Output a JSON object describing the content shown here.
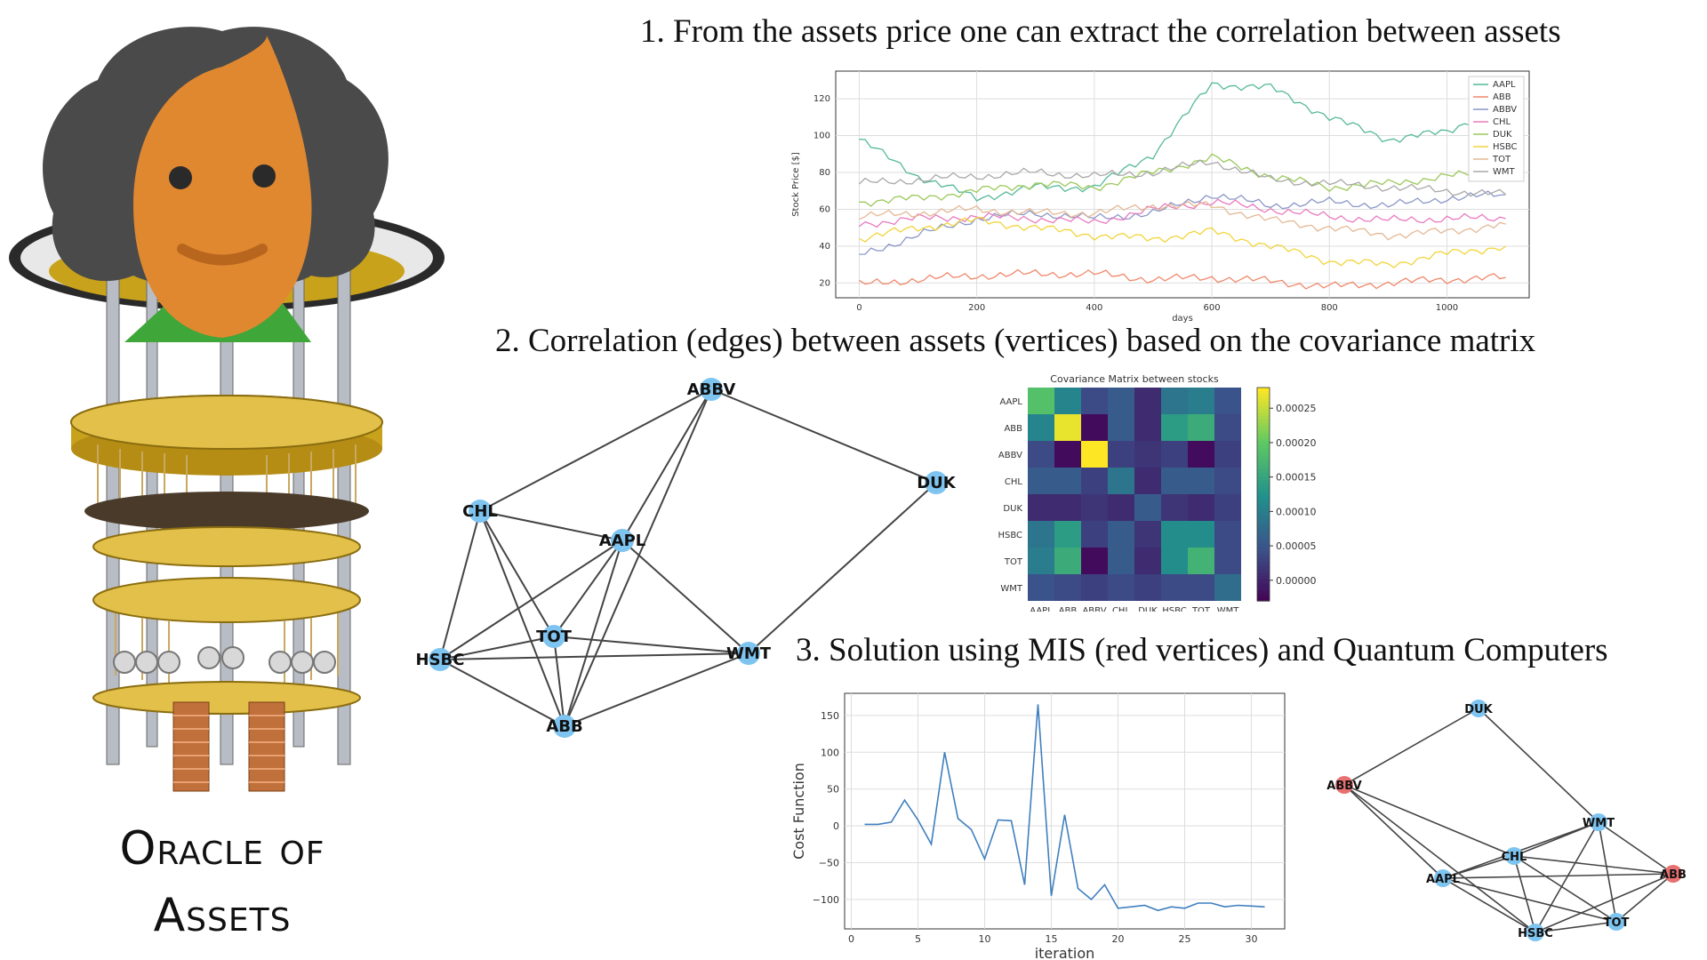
{
  "headings": {
    "step1": "1.  From the assets price one can extract the correlation between assets",
    "step2": "2. Correlation (edges) between assets (vertices) based on the covariance matrix",
    "step3": "3. Solution using MIS (red vertices) and Quantum Computers"
  },
  "oracle": {
    "line1": "Oracle of",
    "line2": "Assets"
  },
  "colors": {
    "node_blue": "#7ec4f0",
    "node_red": "#e87070",
    "edge": "#444444",
    "cost_line": "#3f7fbf"
  },
  "graph_nodes": [
    "AAPL",
    "ABB",
    "ABBV",
    "CHL",
    "DUK",
    "HSBC",
    "TOT",
    "WMT"
  ],
  "graph2_edges": [
    [
      "ABBV",
      "CHL"
    ],
    [
      "ABBV",
      "DUK"
    ],
    [
      "ABBV",
      "AAPL"
    ],
    [
      "ABBV",
      "ABB"
    ],
    [
      "DUK",
      "WMT"
    ],
    [
      "CHL",
      "AAPL"
    ],
    [
      "CHL",
      "HSBC"
    ],
    [
      "CHL",
      "TOT"
    ],
    [
      "CHL",
      "ABB"
    ],
    [
      "AAPL",
      "HSBC"
    ],
    [
      "AAPL",
      "TOT"
    ],
    [
      "AAPL",
      "WMT"
    ],
    [
      "AAPL",
      "ABB"
    ],
    [
      "HSBC",
      "TOT"
    ],
    [
      "HSBC",
      "WMT"
    ],
    [
      "HSBC",
      "ABB"
    ],
    [
      "TOT",
      "WMT"
    ],
    [
      "TOT",
      "ABB"
    ],
    [
      "WMT",
      "ABB"
    ]
  ],
  "graph3_red_nodes": [
    "ABBV",
    "ABB"
  ],
  "graph3_edges": [
    [
      "DUK",
      "ABBV"
    ],
    [
      "DUK",
      "WMT"
    ],
    [
      "ABBV",
      "AAPL"
    ],
    [
      "ABBV",
      "CHL"
    ],
    [
      "ABBV",
      "HSBC"
    ],
    [
      "WMT",
      "CHL"
    ],
    [
      "WMT",
      "AAPL"
    ],
    [
      "WMT",
      "HSBC"
    ],
    [
      "WMT",
      "TOT"
    ],
    [
      "WMT",
      "ABB"
    ],
    [
      "CHL",
      "AAPL"
    ],
    [
      "CHL",
      "ABB"
    ],
    [
      "CHL",
      "HSBC"
    ],
    [
      "CHL",
      "TOT"
    ],
    [
      "AAPL",
      "ABB"
    ],
    [
      "AAPL",
      "HSBC"
    ],
    [
      "AAPL",
      "TOT"
    ],
    [
      "ABB",
      "HSBC"
    ],
    [
      "ABB",
      "TOT"
    ],
    [
      "HSBC",
      "TOT"
    ]
  ],
  "chart_data": [
    {
      "type": "line",
      "title": "",
      "xlabel": "days",
      "ylabel": "Stock Price [$]",
      "xlim": [
        -40,
        1140
      ],
      "ylim": [
        12,
        135
      ],
      "xticks": [
        0,
        200,
        400,
        600,
        800,
        1000
      ],
      "yticks": [
        20,
        40,
        60,
        80,
        100,
        120
      ],
      "grid": true,
      "legend": "top-right",
      "x": [
        0,
        100,
        200,
        300,
        400,
        500,
        600,
        700,
        800,
        900,
        1000,
        1100
      ],
      "series": [
        {
          "name": "AAPL",
          "color": "#55b89a",
          "values": [
            98,
            78,
            66,
            72,
            72,
            90,
            128,
            126,
            110,
            98,
            102,
            118
          ]
        },
        {
          "name": "ABB",
          "color": "#f0876a",
          "values": [
            19,
            22,
            24,
            25,
            25,
            22,
            23,
            21,
            18,
            20,
            22,
            23
          ]
        },
        {
          "name": "ABBV",
          "color": "#8a97c8",
          "values": [
            35,
            46,
            55,
            58,
            55,
            58,
            68,
            62,
            64,
            62,
            66,
            68
          ]
        },
        {
          "name": "CHL",
          "color": "#e87ac0",
          "values": [
            52,
            55,
            56,
            55,
            53,
            60,
            64,
            60,
            56,
            54,
            55,
            55
          ]
        },
        {
          "name": "DUK",
          "color": "#9ac85a",
          "values": [
            64,
            66,
            70,
            74,
            72,
            80,
            88,
            78,
            72,
            74,
            78,
            80
          ]
        },
        {
          "name": "HSBC",
          "color": "#f2d43a",
          "values": [
            44,
            50,
            54,
            50,
            46,
            44,
            48,
            40,
            32,
            30,
            36,
            40
          ]
        },
        {
          "name": "TOT",
          "color": "#e4b894",
          "values": [
            56,
            58,
            60,
            58,
            58,
            62,
            62,
            54,
            50,
            46,
            48,
            52
          ]
        },
        {
          "name": "WMT",
          "color": "#a8a8a8",
          "values": [
            74,
            76,
            78,
            80,
            78,
            80,
            86,
            76,
            74,
            72,
            70,
            68
          ]
        }
      ]
    },
    {
      "type": "heatmap",
      "title": "Covariance Matrix between stocks",
      "rows": [
        "AAPL",
        "ABB",
        "ABBV",
        "CHL",
        "DUK",
        "HSBC",
        "TOT",
        "WMT"
      ],
      "cols": [
        "AAPL",
        "ABB",
        "ABBV",
        "CHL",
        "DUK",
        "HSBC",
        "TOT",
        "WMT"
      ],
      "values": [
        [
          0.00019,
          0.00011,
          4e-05,
          6e-05,
          1e-05,
          9e-05,
          0.0001,
          5e-05
        ],
        [
          0.00011,
          0.00027,
          -2e-05,
          6e-05,
          1e-05,
          0.00014,
          0.00016,
          4e-05
        ],
        [
          4e-05,
          -2e-05,
          0.00028,
          3e-05,
          2e-05,
          3e-05,
          -2e-05,
          3e-05
        ],
        [
          6e-05,
          6e-05,
          3e-05,
          9e-05,
          1e-05,
          6e-05,
          6e-05,
          4e-05
        ],
        [
          1e-05,
          1e-05,
          2e-05,
          1e-05,
          6e-05,
          2e-05,
          1e-05,
          3e-05
        ],
        [
          9e-05,
          0.00014,
          3e-05,
          6e-05,
          2e-05,
          0.00012,
          0.00012,
          4e-05
        ],
        [
          0.0001,
          0.00016,
          -2e-05,
          6e-05,
          1e-05,
          0.00012,
          0.00017,
          4e-05
        ],
        [
          5e-05,
          4e-05,
          3e-05,
          4e-05,
          3e-05,
          4e-05,
          4e-05,
          8e-05
        ]
      ],
      "colorbar_ticks": [
        "0.00025",
        "0.00020",
        "0.00015",
        "0.00010",
        "0.00005",
        "0.00000"
      ],
      "vmin": -3e-05,
      "vmax": 0.00028
    },
    {
      "type": "line",
      "title": "",
      "xlabel": "iteration",
      "ylabel": "Cost Function",
      "xlim": [
        -0.5,
        32.5
      ],
      "ylim": [
        -140,
        180
      ],
      "xticks": [
        0,
        5,
        10,
        15,
        20,
        25,
        30
      ],
      "yticks": [
        -100,
        -50,
        0,
        50,
        100,
        150
      ],
      "grid": true,
      "x": [
        1,
        2,
        3,
        4,
        5,
        6,
        7,
        8,
        9,
        10,
        11,
        12,
        13,
        14,
        15,
        16,
        17,
        18,
        19,
        20,
        21,
        22,
        23,
        24,
        25,
        26,
        27,
        28,
        29,
        30,
        31
      ],
      "series": [
        {
          "values": [
            2,
            2,
            5,
            35,
            8,
            -25,
            100,
            10,
            -5,
            -45,
            8,
            7,
            -80,
            165,
            -95,
            15,
            -85,
            -100,
            -80,
            -112,
            -110,
            -108,
            -115,
            -110,
            -112,
            -105,
            -105,
            -110,
            -108,
            -109,
            -110
          ]
        }
      ]
    }
  ]
}
